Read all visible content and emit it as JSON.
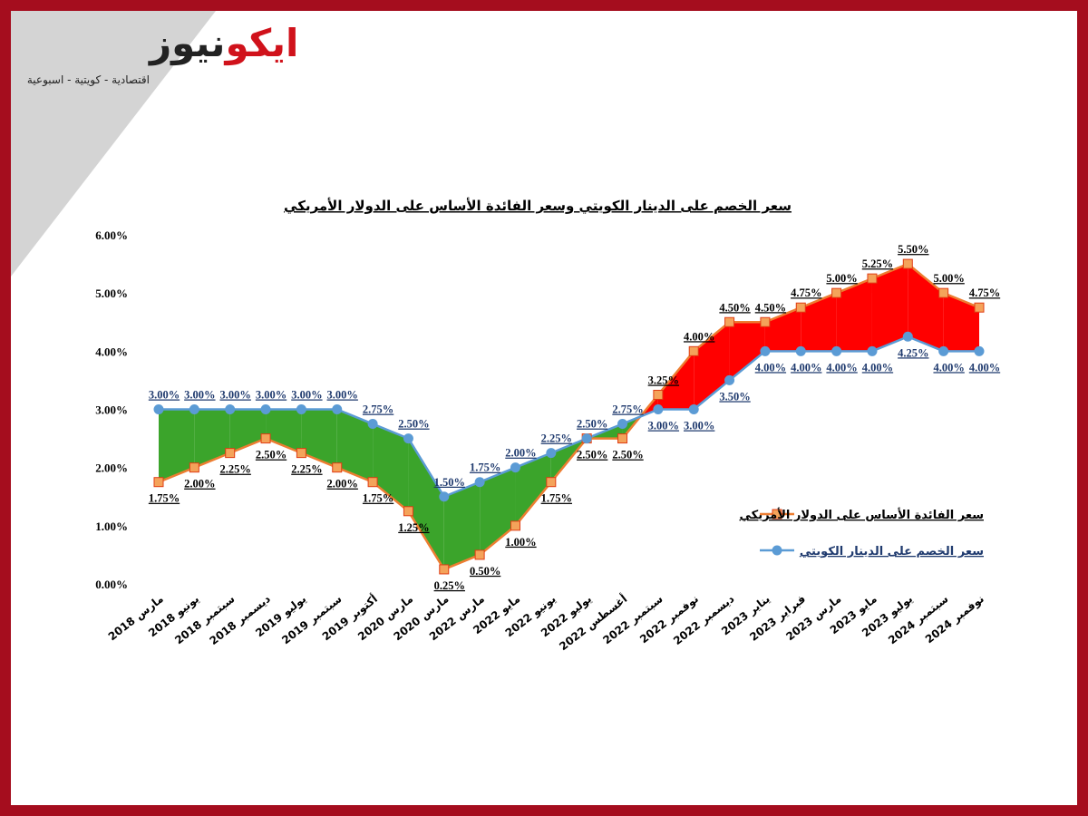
{
  "header": {
    "logo_red": "ايكو",
    "logo_dark": "نيوز",
    "tagline": "اقتصادية - كويتية - اسبوعية"
  },
  "chart_data": {
    "type": "line",
    "title": "سعر الخصم على الدينار الكويتي وسعر الفائدة الأساس على الدولار الأمريكي",
    "categories": [
      "مارس 2018",
      "يونيو 2018",
      "سبتمبر 2018",
      "ديسمبر 2018",
      "يوليو 2019",
      "سبتمبر 2019",
      "أكتوبر 2019",
      "مارس 2020",
      "مارس 2020",
      "مارس 2022",
      "مايو 2022",
      "يونيو 2022",
      "يوليو 2022",
      "أغسطس 2022",
      "سبتمبر 2022",
      "نوفمبر 2022",
      "ديسمبر 2022",
      "يناير 2023",
      "فبراير 2023",
      "مارس 2023",
      "مايو 2023",
      "يوليو 2023",
      "سبتمبر 2024",
      "نوفمبر 2024"
    ],
    "series": [
      {
        "name": "سعر الفائدة الأساس على الدولار الأمريكي",
        "color": "#ed7d31",
        "marker_fill": "#f4a35a",
        "marker_edge": "#e03c14",
        "values": [
          1.75,
          2,
          2.25,
          2.5,
          2.25,
          2,
          1.75,
          1.25,
          0.25,
          0.5,
          1,
          1.75,
          2.5,
          2.5,
          3.25,
          4,
          4.5,
          4.5,
          4.75,
          5,
          5.25,
          5.5,
          5,
          4.75
        ],
        "value_labels": [
          "1.75%",
          "2.00%",
          "2.25%",
          "2.50%",
          "2.25%",
          "2.00%",
          "1.75%",
          "1.25%",
          "0.25%",
          "0.50%",
          "1.00%",
          "1.75%",
          "2.50%",
          "2.50%",
          "3.25%",
          "4.00%",
          "4.50%",
          "4.50%",
          "4.75%",
          "5.00%",
          "5.25%",
          "5.50%",
          "5.00%",
          "4.75%"
        ]
      },
      {
        "name": "سعر الخصم على الدينار الكويتي",
        "color": "#5b9bd5",
        "marker_fill": "#5b9bd5",
        "marker_edge": "#5b9bd5",
        "values": [
          3,
          3,
          3,
          3,
          3,
          3,
          2.75,
          2.5,
          1.5,
          1.75,
          2,
          2.25,
          2.5,
          2.75,
          3,
          3,
          3.5,
          4,
          4,
          4,
          4,
          4.25,
          4,
          4
        ],
        "value_labels": [
          "3.00%",
          "3.00%",
          "3.00%",
          "3.00%",
          "3.00%",
          "3.00%",
          "2.75%",
          "2.50%",
          "1.50%",
          "1.75%",
          "2.00%",
          "2.25%",
          "2.50%",
          "2.75%",
          "3.00%",
          "3.00%",
          "3.50%",
          "4.00%",
          "4.00%",
          "4.00%",
          "4.00%",
          "4.25%",
          "4.00%",
          "4.00%"
        ]
      }
    ],
    "area_colors": {
      "kwd_above": "#3ba42b",
      "usd_above": "#ff0000"
    },
    "ylim": [
      0,
      6
    ],
    "yticks": [
      {
        "value": 0,
        "label": "0.00%"
      },
      {
        "value": 1,
        "label": "1.00%"
      },
      {
        "value": 2,
        "label": "2.00%"
      },
      {
        "value": 3,
        "label": "3.00%"
      },
      {
        "value": 4,
        "label": "4.00%"
      },
      {
        "value": 5,
        "label": "5.00%"
      },
      {
        "value": 6,
        "label": "6.00%"
      }
    ],
    "grid": false,
    "legend": "right"
  }
}
